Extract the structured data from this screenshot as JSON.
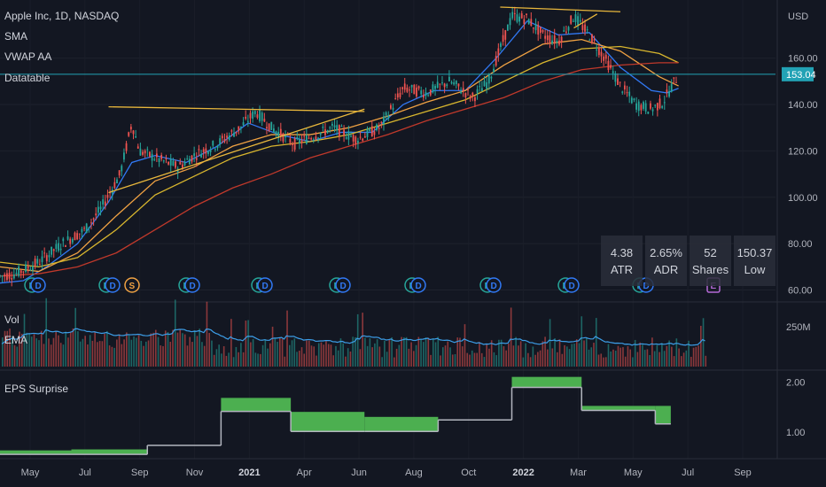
{
  "chart_data": [
    {
      "type": "candlestick",
      "legend": {
        "title": "Apple Inc, 1D, NASDAQ",
        "indicators": [
          "SMA",
          "VWAP AA",
          "Datatable"
        ]
      },
      "currency": "USD",
      "price_tag": {
        "value": 153.04,
        "label": "153.04",
        "color": "#22a2b5"
      },
      "y_ticks": [
        60,
        80,
        100,
        120,
        140,
        160
      ],
      "y_tick_labels": [
        "60.00",
        "80.00",
        "100.00",
        "120.00",
        "140.00",
        "160.00"
      ],
      "ylim": [
        56,
        182
      ],
      "x_ticks": [
        {
          "label": "May",
          "bold": false
        },
        {
          "label": "Jul",
          "bold": false
        },
        {
          "label": "Sep",
          "bold": false
        },
        {
          "label": "Nov",
          "bold": false
        },
        {
          "label": "2021",
          "bold": true
        },
        {
          "label": "Apr",
          "bold": false
        },
        {
          "label": "Jun",
          "bold": false
        },
        {
          "label": "Aug",
          "bold": false
        },
        {
          "label": "Oct",
          "bold": false
        },
        {
          "label": "2022",
          "bold": true
        },
        {
          "label": "Mar",
          "bold": false
        },
        {
          "label": "May",
          "bold": false
        },
        {
          "label": "Jul",
          "bold": false
        },
        {
          "label": "Sep",
          "bold": false
        }
      ],
      "price_path": [
        [
          0,
          66
        ],
        [
          0.02,
          67
        ],
        [
          0.05,
          72
        ],
        [
          0.08,
          80
        ],
        [
          0.11,
          86
        ],
        [
          0.13,
          95
        ],
        [
          0.155,
          110
        ],
        [
          0.17,
          132
        ],
        [
          0.18,
          120
        ],
        [
          0.2,
          117
        ],
        [
          0.23,
          113
        ],
        [
          0.25,
          118
        ],
        [
          0.28,
          123
        ],
        [
          0.31,
          130
        ],
        [
          0.33,
          137
        ],
        [
          0.35,
          130
        ],
        [
          0.38,
          123
        ],
        [
          0.4,
          126
        ],
        [
          0.43,
          130
        ],
        [
          0.46,
          125
        ],
        [
          0.49,
          130
        ],
        [
          0.52,
          147
        ],
        [
          0.55,
          145
        ],
        [
          0.58,
          150
        ],
        [
          0.61,
          143
        ],
        [
          0.63,
          150
        ],
        [
          0.66,
          178
        ],
        [
          0.68,
          177
        ],
        [
          0.7,
          170
        ],
        [
          0.72,
          167
        ],
        [
          0.74,
          178
        ],
        [
          0.76,
          170
        ],
        [
          0.78,
          160
        ],
        [
          0.8,
          148
        ],
        [
          0.82,
          140
        ],
        [
          0.84,
          138
        ],
        [
          0.855,
          141
        ],
        [
          0.87,
          150
        ],
        [
          0.875,
          153
        ]
      ],
      "series": [
        {
          "name": "",
          "color": "#3179f5",
          "values": [
            [
              0,
              63
            ],
            [
              0.03,
              64
            ],
            [
              0.06,
              70
            ],
            [
              0.1,
              80
            ],
            [
              0.14,
              98
            ],
            [
              0.17,
              115
            ],
            [
              0.2,
              118
            ],
            [
              0.24,
              115
            ],
            [
              0.28,
              122
            ],
            [
              0.32,
              132
            ],
            [
              0.36,
              127
            ],
            [
              0.4,
              124
            ],
            [
              0.44,
              128
            ],
            [
              0.48,
              128
            ],
            [
              0.52,
              140
            ],
            [
              0.56,
              146
            ],
            [
              0.6,
              146
            ],
            [
              0.64,
              160
            ],
            [
              0.68,
              176
            ],
            [
              0.72,
              170
            ],
            [
              0.76,
              171
            ],
            [
              0.8,
              156
            ],
            [
              0.84,
              146
            ],
            [
              0.86,
              145
            ],
            [
              0.875,
              147
            ]
          ]
        },
        {
          "name": "",
          "color": "#f0a243",
          "values": [
            [
              0,
              70
            ],
            [
              0.05,
              68
            ],
            [
              0.1,
              76
            ],
            [
              0.15,
              92
            ],
            [
              0.2,
              107
            ],
            [
              0.25,
              113
            ],
            [
              0.3,
              122
            ],
            [
              0.35,
              127
            ],
            [
              0.4,
              127
            ],
            [
              0.45,
              130
            ],
            [
              0.5,
              135
            ],
            [
              0.55,
              141
            ],
            [
              0.6,
              146
            ],
            [
              0.65,
              157
            ],
            [
              0.7,
              166
            ],
            [
              0.75,
              168
            ],
            [
              0.8,
              163
            ],
            [
              0.85,
              152
            ],
            [
              0.875,
              148
            ]
          ]
        },
        {
          "name": "",
          "color": "#d8b62e",
          "values": [
            [
              0,
              72
            ],
            [
              0.05,
              70
            ],
            [
              0.1,
              74
            ],
            [
              0.15,
              86
            ],
            [
              0.2,
              101
            ],
            [
              0.25,
              109
            ],
            [
              0.3,
              117
            ],
            [
              0.35,
              122
            ],
            [
              0.4,
              124
            ],
            [
              0.45,
              127
            ],
            [
              0.5,
              132
            ],
            [
              0.55,
              137
            ],
            [
              0.6,
              142
            ],
            [
              0.65,
              150
            ],
            [
              0.7,
              158
            ],
            [
              0.75,
              164
            ],
            [
              0.8,
              165
            ],
            [
              0.85,
              162
            ],
            [
              0.875,
              158
            ]
          ]
        },
        {
          "name": "",
          "color": "#c0392b",
          "values": [
            [
              0,
              66
            ],
            [
              0.05,
              67
            ],
            [
              0.1,
              70
            ],
            [
              0.15,
              76
            ],
            [
              0.2,
              86
            ],
            [
              0.25,
              96
            ],
            [
              0.3,
              104
            ],
            [
              0.35,
              110
            ],
            [
              0.4,
              117
            ],
            [
              0.45,
              122
            ],
            [
              0.5,
              127
            ],
            [
              0.55,
              133
            ],
            [
              0.6,
              138
            ],
            [
              0.65,
              143
            ],
            [
              0.7,
              150
            ],
            [
              0.75,
              155
            ],
            [
              0.8,
              157
            ],
            [
              0.85,
              158
            ],
            [
              0.875,
              158
            ]
          ]
        }
      ],
      "trendlines": [
        {
          "color": "#e8b73c",
          "values": [
            [
              0.14,
              139
            ],
            [
              0.47,
              137
            ]
          ]
        },
        {
          "color": "#e8b73c",
          "values": [
            [
              0.14,
              102
            ],
            [
              0.47,
              138
            ]
          ]
        },
        {
          "color": "#e8b73c",
          "values": [
            [
              0.645,
              182
            ],
            [
              0.8,
              180
            ]
          ]
        },
        {
          "color": "#e8b73c",
          "values": [
            [
              0.74,
              173
            ],
            [
              0.77,
              179
            ]
          ]
        }
      ],
      "horizontal_line": {
        "value": 153.04,
        "color": "#22a2b5"
      },
      "events": [
        {
          "label": "E",
          "kind": "earnings"
        },
        {
          "label": "D",
          "kind": "dividend"
        },
        {
          "label": "S",
          "kind": "split"
        },
        {
          "label": "E",
          "kind": "earnings-upcoming"
        }
      ],
      "datatable": [
        {
          "value": "4.38",
          "label": "ATR"
        },
        {
          "value": "2.65%",
          "label": "ADR"
        },
        {
          "value": "52",
          "label": "Shares"
        },
        {
          "value": "150.37",
          "label": "Low"
        }
      ]
    },
    {
      "type": "bar",
      "legend": {
        "title": "Vol",
        "indicators": [
          "EMA"
        ]
      },
      "y_ticks": [
        250
      ],
      "y_tick_labels": [
        "250M"
      ],
      "ema_color": "#3c9ee8",
      "up_color": "#26a69a",
      "down_color": "#ef5350"
    },
    {
      "type": "area",
      "legend": {
        "title": "EPS Surprise"
      },
      "y_ticks": [
        1.0,
        2.0
      ],
      "y_tick_labels": [
        "1.00",
        "2.00"
      ],
      "ylim": [
        0.5,
        2.2
      ],
      "steps": [
        {
          "x0": 0.0,
          "x1": 0.092,
          "actual": 0.63,
          "estimate": 0.55
        },
        {
          "x0": 0.092,
          "x1": 0.19,
          "actual": 0.65,
          "estimate": 0.55
        },
        {
          "x0": 0.19,
          "x1": 0.285,
          "actual": 0.73,
          "estimate": 0.73
        },
        {
          "x0": 0.285,
          "x1": 0.375,
          "actual": 1.68,
          "estimate": 1.41
        },
        {
          "x0": 0.375,
          "x1": 0.47,
          "actual": 1.4,
          "estimate": 1.01
        },
        {
          "x0": 0.47,
          "x1": 0.565,
          "actual": 1.3,
          "estimate": 1.01
        },
        {
          "x0": 0.565,
          "x1": 0.66,
          "actual": 1.24,
          "estimate": 1.24
        },
        {
          "x0": 0.66,
          "x1": 0.75,
          "actual": 2.1,
          "estimate": 1.89
        },
        {
          "x0": 0.75,
          "x1": 0.845,
          "actual": 1.52,
          "estimate": 1.43
        },
        {
          "x0": 0.845,
          "x1": 0.865,
          "actual": 1.52,
          "estimate": 1.16
        }
      ]
    }
  ]
}
